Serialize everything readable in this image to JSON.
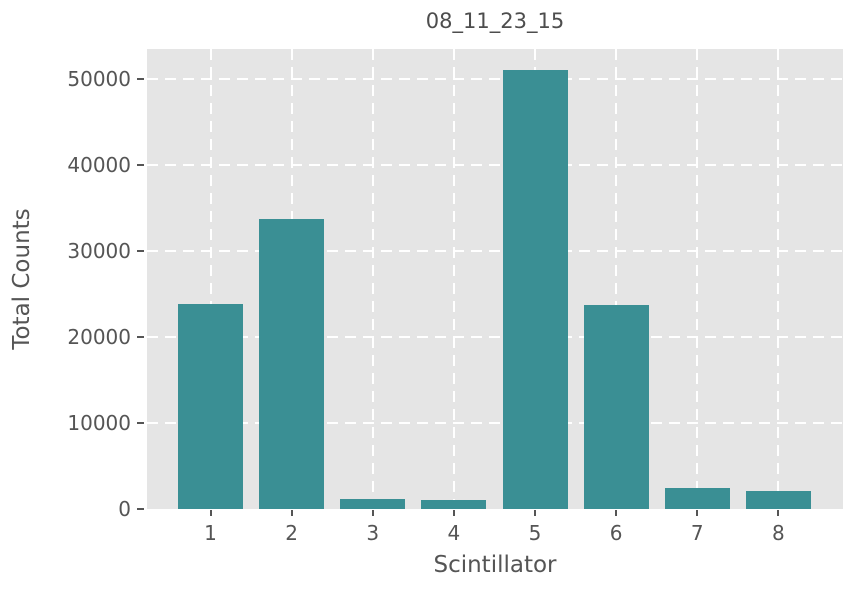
{
  "chart_data": {
    "type": "bar",
    "title": "08_11_23_15",
    "xlabel": "Scintillator",
    "ylabel": "Total Counts",
    "categories": [
      "1",
      "2",
      "3",
      "4",
      "5",
      "6",
      "7",
      "8"
    ],
    "values": [
      23900,
      33700,
      1150,
      1050,
      51100,
      23700,
      2500,
      2100
    ],
    "ylim": [
      0,
      53500
    ],
    "yticks": [
      0,
      10000,
      20000,
      30000,
      40000,
      50000
    ],
    "ytick_labels": [
      "0",
      "10000",
      "20000",
      "30000",
      "40000",
      "50000"
    ],
    "grid": true,
    "grid_linestyle": "dashed",
    "legend": "none",
    "colors": {
      "bar": "#3a8f94",
      "plot_background": "#e5e5e5",
      "figure_background": "#ffffff",
      "grid": "#ffffff",
      "tick_text": "#555555",
      "axis_label_text": "#555555",
      "title_text": "#4d4d4d",
      "tick_mark": "#555555"
    }
  }
}
